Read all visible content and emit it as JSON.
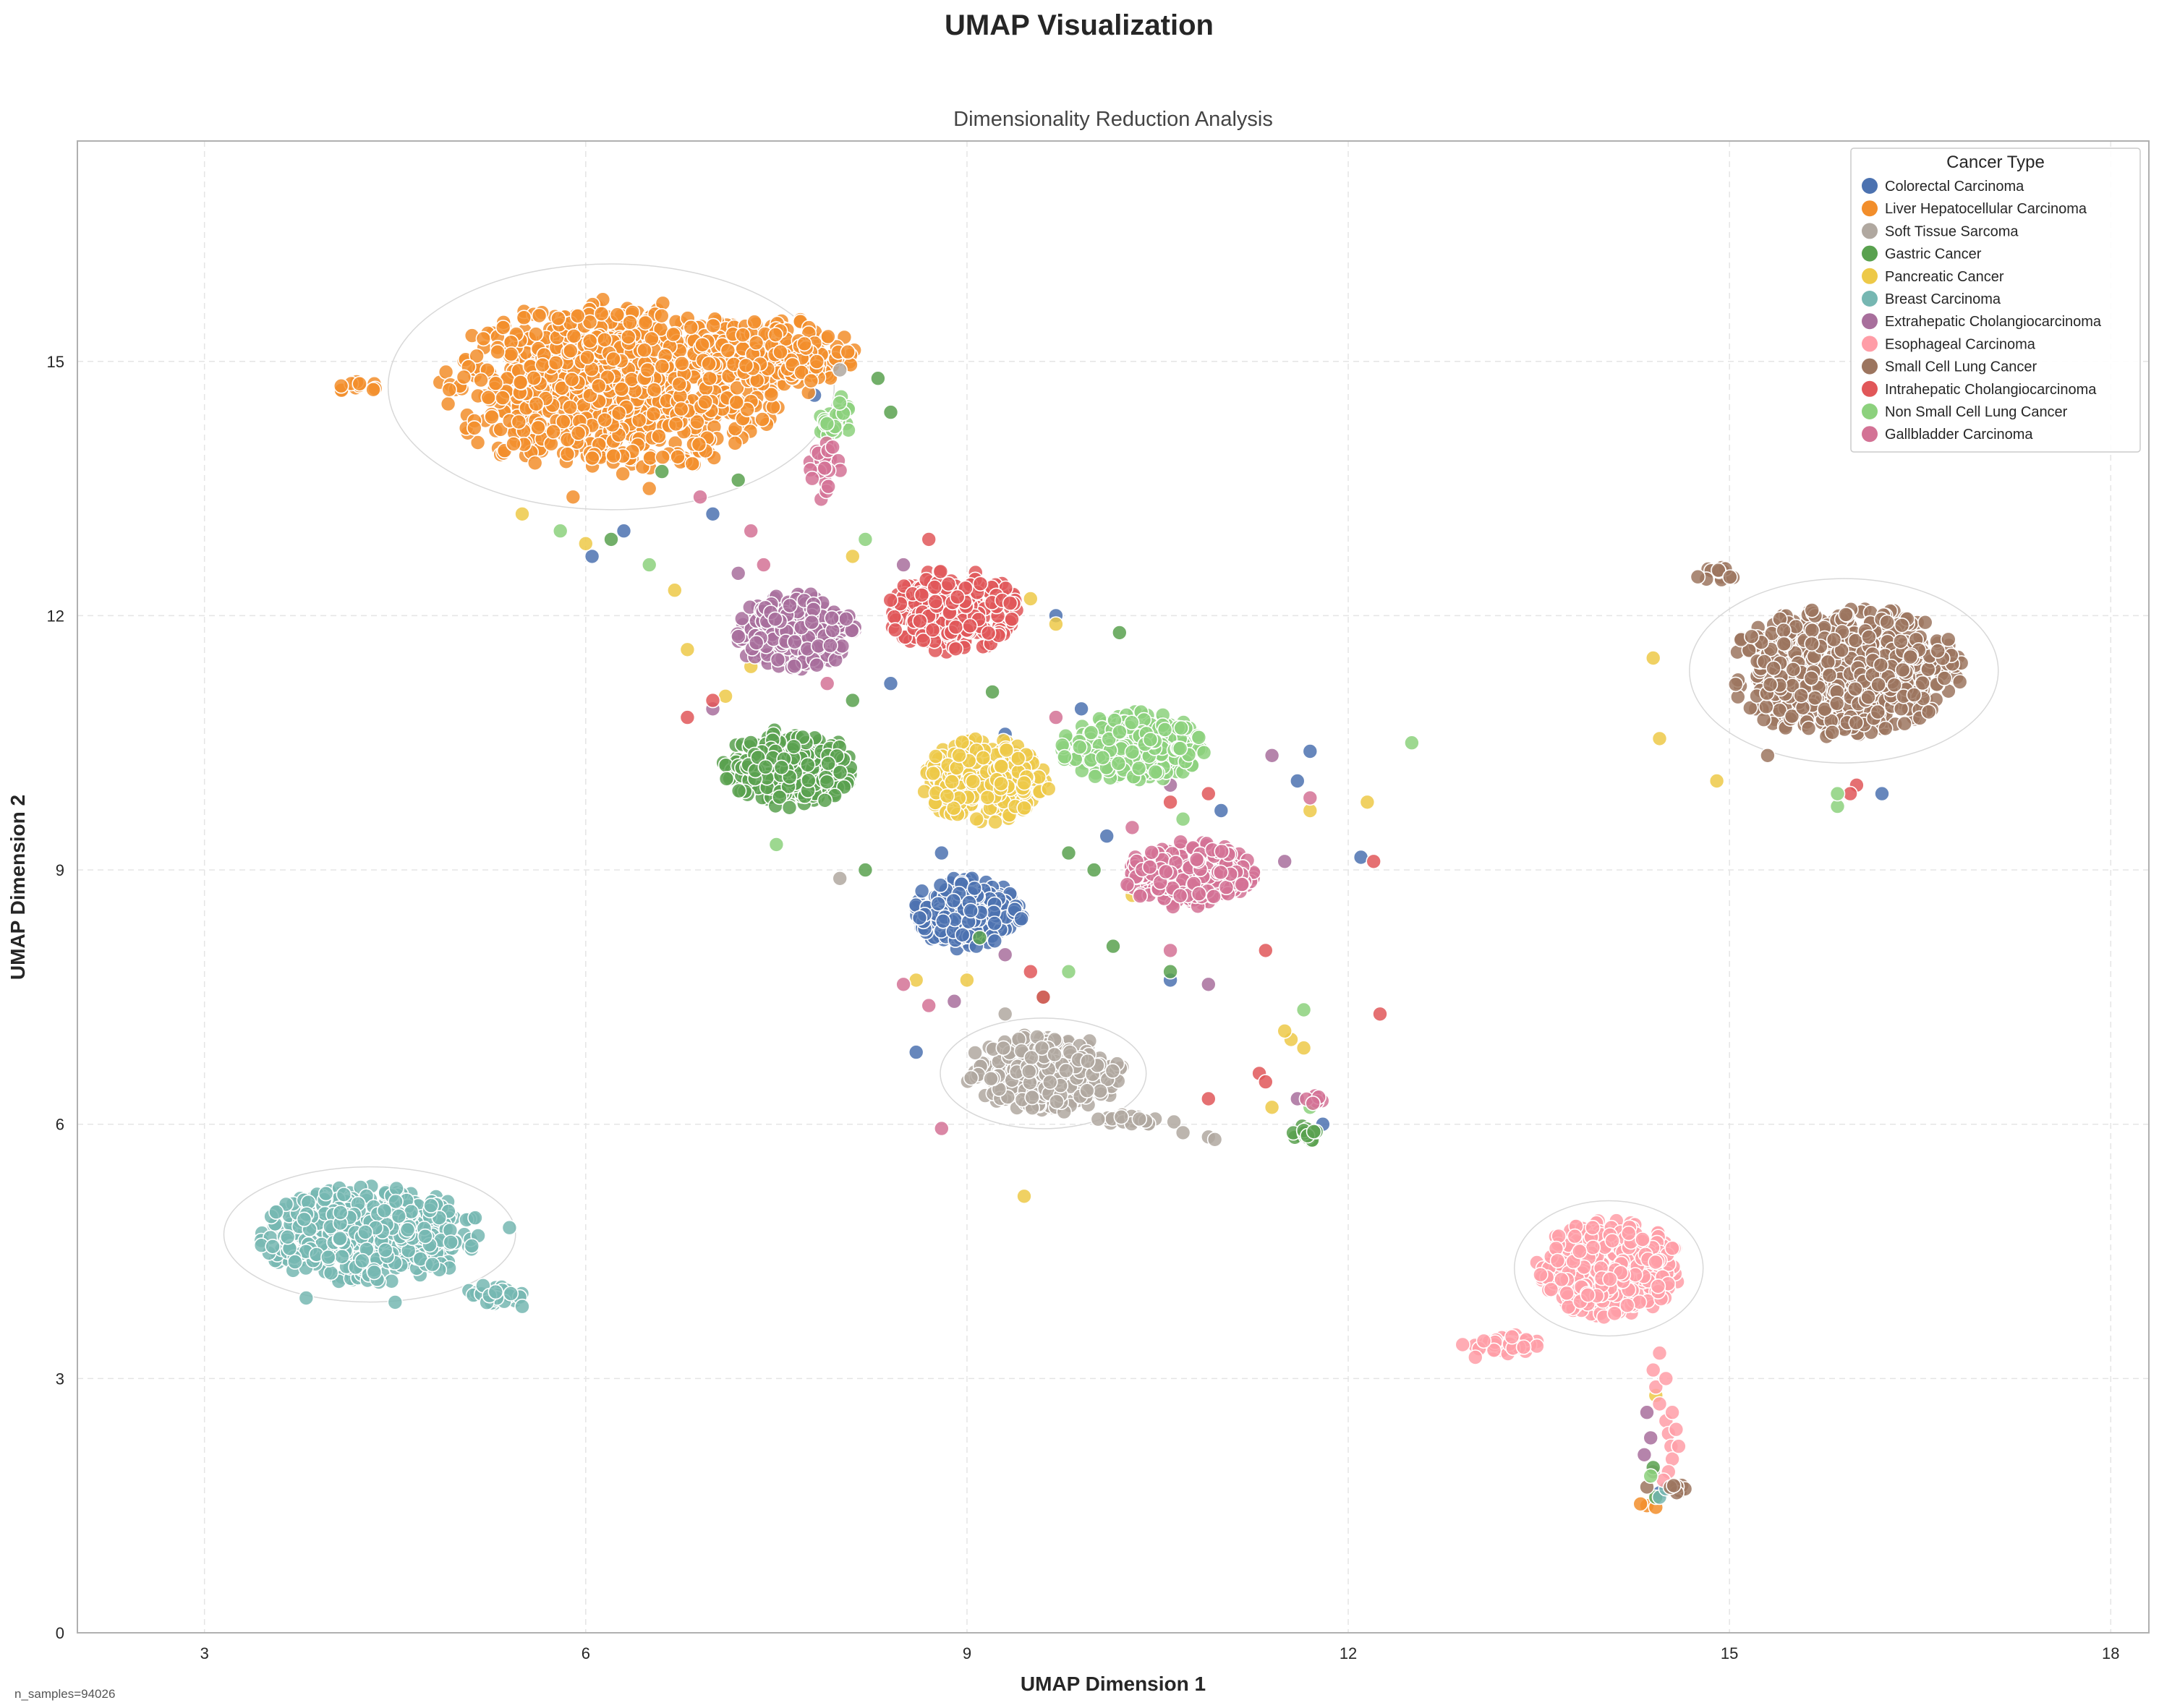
{
  "figure": {
    "suptitle": "UMAP Visualization",
    "footnote": "n_samples=94026"
  },
  "chart_data": {
    "type": "scatter",
    "title": "Dimensionality Reduction Analysis",
    "xlabel": "UMAP Dimension 1",
    "ylabel": "UMAP Dimension 2",
    "xlim": [
      2.0,
      18.3
    ],
    "ylim": [
      0,
      17.6
    ],
    "xticks": [
      3,
      6,
      9,
      12,
      15,
      18
    ],
    "yticks": [
      0,
      3,
      6,
      9,
      12,
      15
    ],
    "grid": true,
    "legend_title": "Cancer Type",
    "legend_position": "top-right",
    "point_edge": "white",
    "point_alpha": 0.85,
    "series": [
      {
        "name": "Colorectal Carcinoma",
        "color": "#4c72b0",
        "clusters": [
          {
            "cx": 9.0,
            "cy": 8.5,
            "rx": 0.42,
            "ry": 0.42,
            "n": 260
          }
        ],
        "points": [
          [
            8.6,
            6.85
          ],
          [
            9.7,
            12.0
          ],
          [
            7.8,
            14.6
          ],
          [
            8.8,
            9.2
          ],
          [
            10.6,
            7.7
          ],
          [
            11.0,
            9.7
          ],
          [
            12.1,
            9.15
          ],
          [
            11.6,
            10.05
          ],
          [
            16.2,
            9.9
          ],
          [
            6.3,
            13.0
          ],
          [
            7.9,
            13.9
          ],
          [
            9.3,
            10.6
          ],
          [
            10.1,
            9.4
          ],
          [
            6.05,
            12.7
          ],
          [
            11.8,
            6.0
          ],
          [
            14.45,
            1.65
          ],
          [
            11.7,
            10.4
          ],
          [
            7.0,
            13.2
          ],
          [
            8.4,
            11.2
          ],
          [
            9.9,
            10.9
          ]
        ]
      },
      {
        "name": "Liver Hepatocellular Carcinoma",
        "color": "#f28e2b",
        "clusters": [
          {
            "cx": 6.2,
            "cy": 14.7,
            "rx": 1.3,
            "ry": 1.0,
            "n": 1000
          },
          {
            "cx": 7.5,
            "cy": 15.05,
            "rx": 0.6,
            "ry": 0.45,
            "n": 180
          },
          {
            "cx": 4.2,
            "cy": 14.72,
            "rx": 0.2,
            "ry": 0.08,
            "n": 12
          }
        ],
        "points": [
          [
            14.35,
            1.5
          ],
          [
            14.42,
            1.48
          ],
          [
            14.3,
            1.52
          ],
          [
            5.9,
            13.4
          ],
          [
            6.5,
            13.5
          ]
        ]
      },
      {
        "name": "Soft Tissue Sarcoma",
        "color": "#b0a8a0",
        "clusters": [
          {
            "cx": 9.6,
            "cy": 6.6,
            "rx": 0.6,
            "ry": 0.45,
            "n": 380
          },
          {
            "cx": 10.3,
            "cy": 6.05,
            "rx": 0.35,
            "ry": 0.07,
            "n": 22
          }
        ],
        "points": [
          [
            10.9,
            5.85
          ],
          [
            10.95,
            5.82
          ],
          [
            10.7,
            5.9
          ],
          [
            9.3,
            7.3
          ],
          [
            8.0,
            8.9
          ],
          [
            14.4,
            1.9
          ],
          [
            8.0,
            14.9
          ]
        ]
      },
      {
        "name": "Gastric Cancer",
        "color": "#59a14f",
        "clusters": [
          {
            "cx": 7.6,
            "cy": 10.2,
            "rx": 0.5,
            "ry": 0.45,
            "n": 320
          },
          {
            "cx": 11.65,
            "cy": 5.9,
            "rx": 0.12,
            "ry": 0.12,
            "n": 14
          }
        ],
        "points": [
          [
            10.2,
            11.8
          ],
          [
            10.15,
            8.1
          ],
          [
            9.2,
            11.1
          ],
          [
            9.8,
            9.2
          ],
          [
            8.4,
            14.4
          ],
          [
            7.2,
            13.6
          ],
          [
            6.6,
            13.7
          ],
          [
            10.6,
            7.8
          ],
          [
            8.2,
            9.0
          ],
          [
            9.1,
            8.2
          ],
          [
            14.4,
            1.95
          ],
          [
            14.42,
            1.6
          ],
          [
            8.9,
            9.8
          ],
          [
            6.2,
            12.9
          ],
          [
            8.3,
            14.8
          ],
          [
            9.6,
            7.5
          ],
          [
            10.0,
            9.0
          ],
          [
            8.1,
            11.0
          ]
        ]
      },
      {
        "name": "Pancreatic Cancer",
        "color": "#edc948",
        "clusters": [
          {
            "cx": 9.15,
            "cy": 10.05,
            "rx": 0.48,
            "ry": 0.5,
            "n": 300
          }
        ],
        "points": [
          [
            9.45,
            5.15
          ],
          [
            14.4,
            11.5
          ],
          [
            14.45,
            10.55
          ],
          [
            14.9,
            10.05
          ],
          [
            12.15,
            9.8
          ],
          [
            11.7,
            9.7
          ],
          [
            11.55,
            7.0
          ],
          [
            11.5,
            7.1
          ],
          [
            11.4,
            6.2
          ],
          [
            10.3,
            8.7
          ],
          [
            9.0,
            7.7
          ],
          [
            9.5,
            12.2
          ],
          [
            9.7,
            11.9
          ],
          [
            6.8,
            11.6
          ],
          [
            7.1,
            11.05
          ],
          [
            6.7,
            12.3
          ],
          [
            8.6,
            7.7
          ],
          [
            14.42,
            2.8
          ],
          [
            7.3,
            11.4
          ],
          [
            8.1,
            12.7
          ],
          [
            11.65,
            6.9
          ],
          [
            5.5,
            13.2
          ],
          [
            6.0,
            12.85
          ]
        ]
      },
      {
        "name": "Breast Carcinoma",
        "color": "#76b7b2",
        "clusters": [
          {
            "cx": 4.3,
            "cy": 4.7,
            "rx": 0.85,
            "ry": 0.55,
            "n": 560
          },
          {
            "cx": 5.3,
            "cy": 4.0,
            "rx": 0.25,
            "ry": 0.12,
            "n": 28
          }
        ],
        "points": [
          [
            5.5,
            3.85
          ],
          [
            5.4,
            4.78
          ],
          [
            3.8,
            3.95
          ],
          [
            4.5,
            3.9
          ],
          [
            14.45,
            1.6
          ],
          [
            14.5,
            1.7
          ]
        ]
      },
      {
        "name": "Extrahepatic Cholangiocarcinoma",
        "color": "#a86f9c",
        "clusters": [
          {
            "cx": 7.65,
            "cy": 11.8,
            "rx": 0.45,
            "ry": 0.45,
            "n": 260
          }
        ],
        "points": [
          [
            10.9,
            7.65
          ],
          [
            11.4,
            10.35
          ],
          [
            11.6,
            6.3
          ],
          [
            14.35,
            2.6
          ],
          [
            14.38,
            2.3
          ],
          [
            14.33,
            2.1
          ],
          [
            9.3,
            8.0
          ],
          [
            8.5,
            12.6
          ],
          [
            7.0,
            10.9
          ],
          [
            10.6,
            10.0
          ],
          [
            7.2,
            12.5
          ],
          [
            11.5,
            9.1
          ],
          [
            8.9,
            7.45
          ]
        ]
      },
      {
        "name": "Esophageal Carcinoma",
        "color": "#ff9da7",
        "clusters": [
          {
            "cx": 14.05,
            "cy": 4.3,
            "rx": 0.55,
            "ry": 0.55,
            "n": 520
          },
          {
            "cx": 13.25,
            "cy": 3.4,
            "rx": 0.28,
            "ry": 0.12,
            "n": 50
          }
        ],
        "points": [
          [
            14.4,
            3.1
          ],
          [
            14.42,
            2.9
          ],
          [
            14.45,
            2.7
          ],
          [
            14.5,
            2.5
          ],
          [
            14.52,
            2.35
          ],
          [
            14.54,
            2.2
          ],
          [
            14.55,
            2.05
          ],
          [
            14.52,
            1.9
          ],
          [
            14.48,
            1.8
          ],
          [
            14.45,
            3.3
          ],
          [
            14.5,
            3.0
          ],
          [
            14.55,
            2.6
          ],
          [
            14.58,
            2.4
          ],
          [
            14.6,
            2.2
          ],
          [
            13.0,
            3.25
          ],
          [
            12.9,
            3.4
          ]
        ]
      },
      {
        "name": "Small Cell Lung Cancer",
        "color": "#9c755f",
        "clusters": [
          {
            "cx": 15.9,
            "cy": 11.35,
            "rx": 0.9,
            "ry": 0.75,
            "n": 700
          },
          {
            "cx": 14.9,
            "cy": 12.5,
            "rx": 0.18,
            "ry": 0.08,
            "n": 16
          },
          {
            "cx": 14.6,
            "cy": 1.7,
            "rx": 0.08,
            "ry": 0.06,
            "n": 8
          }
        ],
        "points": [
          [
            15.3,
            10.35
          ],
          [
            14.35,
            1.72
          ]
        ]
      },
      {
        "name": "Intrahepatic Cholangiocarcinoma",
        "color": "#e15759",
        "clusters": [
          {
            "cx": 8.9,
            "cy": 12.05,
            "rx": 0.5,
            "ry": 0.48,
            "n": 320
          }
        ],
        "points": [
          [
            11.35,
            8.05
          ],
          [
            11.3,
            6.6
          ],
          [
            11.35,
            6.5
          ],
          [
            12.2,
            9.1
          ],
          [
            12.25,
            7.3
          ],
          [
            10.9,
            9.9
          ],
          [
            16.0,
            10.0
          ],
          [
            15.95,
            9.9
          ],
          [
            9.5,
            7.8
          ],
          [
            6.8,
            10.8
          ],
          [
            10.6,
            9.8
          ],
          [
            7.0,
            11.0
          ],
          [
            10.9,
            6.3
          ],
          [
            9.6,
            7.5
          ],
          [
            7.9,
            14.2
          ],
          [
            8.7,
            12.9
          ]
        ]
      },
      {
        "name": "Non Small Cell Lung Cancer",
        "color": "#8cd17d",
        "clusters": [
          {
            "cx": 10.3,
            "cy": 10.45,
            "rx": 0.55,
            "ry": 0.4,
            "n": 300
          },
          {
            "cx": 7.95,
            "cy": 14.35,
            "rx": 0.15,
            "ry": 0.25,
            "n": 28
          }
        ],
        "points": [
          [
            12.5,
            10.5
          ],
          [
            15.85,
            9.75
          ],
          [
            15.85,
            9.9
          ],
          [
            11.65,
            7.35
          ],
          [
            11.7,
            6.2
          ],
          [
            9.8,
            7.8
          ],
          [
            7.5,
            9.3
          ],
          [
            6.5,
            12.6
          ],
          [
            5.8,
            13.0
          ],
          [
            14.38,
            1.85
          ],
          [
            10.7,
            9.6
          ],
          [
            8.2,
            12.9
          ]
        ]
      },
      {
        "name": "Gallbladder Carcinoma",
        "color": "#d37295",
        "clusters": [
          {
            "cx": 10.75,
            "cy": 8.95,
            "rx": 0.5,
            "ry": 0.38,
            "n": 300
          },
          {
            "cx": 7.85,
            "cy": 13.7,
            "rx": 0.15,
            "ry": 0.4,
            "n": 26
          },
          {
            "cx": 11.75,
            "cy": 6.3,
            "rx": 0.08,
            "ry": 0.1,
            "n": 8
          }
        ],
        "points": [
          [
            8.8,
            5.95
          ],
          [
            10.6,
            8.05
          ],
          [
            11.7,
            9.85
          ],
          [
            8.5,
            7.65
          ],
          [
            8.7,
            7.4
          ],
          [
            7.4,
            12.6
          ],
          [
            7.9,
            11.2
          ],
          [
            10.3,
            9.5
          ],
          [
            6.9,
            13.4
          ],
          [
            7.3,
            13.0
          ],
          [
            9.7,
            10.8
          ]
        ]
      }
    ]
  }
}
